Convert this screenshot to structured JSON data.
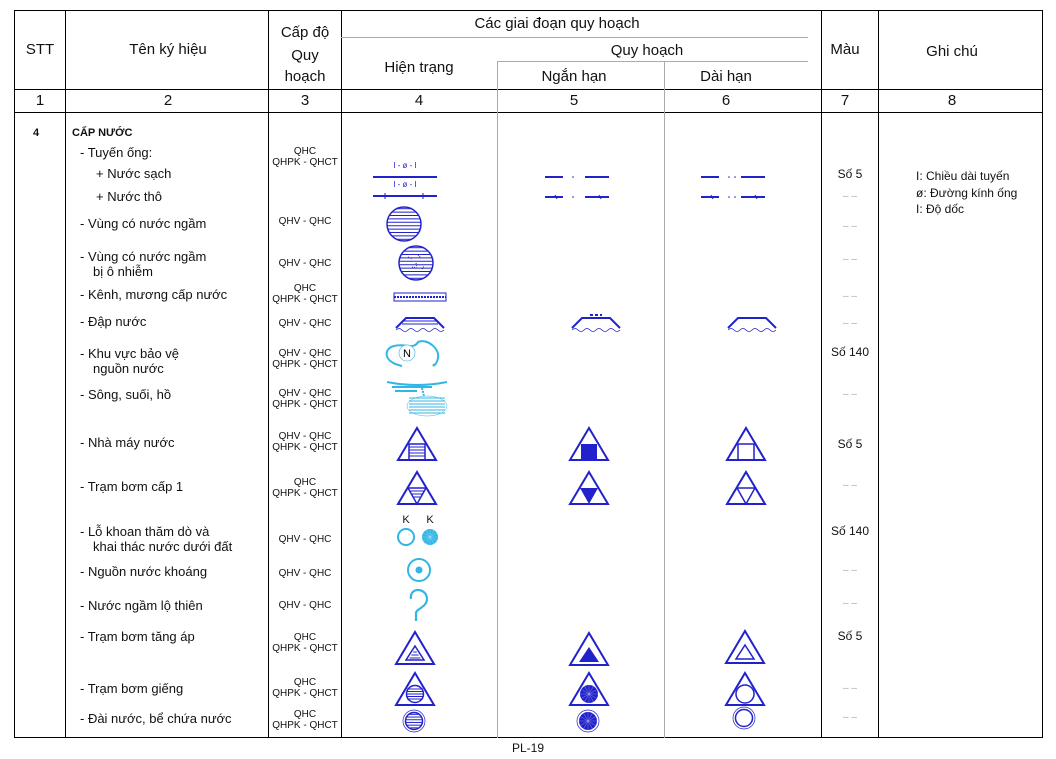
{
  "header": {
    "stt": "STT",
    "name": "Tên ký hiệu",
    "level": [
      "Cấp độ",
      "Quy",
      "hoạch"
    ],
    "stages": "Các giai đoạn quy hoạch",
    "current": "Hiện trạng",
    "planning": "Quy hoạch",
    "short_term": "Ngắn hạn",
    "long_term": "Dài hạn",
    "color": "Màu",
    "note": "Ghi chú"
  },
  "column_numbers": [
    "1",
    "2",
    "3",
    "4",
    "5",
    "6",
    "7",
    "8"
  ],
  "section": {
    "stt": "4",
    "title": "CẤP NƯỚC"
  },
  "rows": [
    {
      "name": [
        "- Tuyến ống:"
      ],
      "level": [
        "QHC",
        "QHPK - QHCT"
      ],
      "color": ""
    },
    {
      "name": [
        "+ Nước sạch"
      ],
      "level": [],
      "color": "Số 5"
    },
    {
      "name": [
        "+ Nước thô"
      ],
      "level": [],
      "color": "– –"
    },
    {
      "name": [
        "- Vùng có nước ngầm"
      ],
      "level": [
        "QHV - QHC"
      ],
      "color": "– –"
    },
    {
      "name": [
        "- Vùng có nước ngầm",
        "bị ô nhiễm"
      ],
      "level": [
        "QHV - QHC"
      ],
      "color": "– –"
    },
    {
      "name": [
        "- Kênh, mương cấp nước"
      ],
      "level": [
        "QHC",
        "QHPK - QHCT"
      ],
      "color": "– –"
    },
    {
      "name": [
        "- Đập nước"
      ],
      "level": [
        "QHV - QHC"
      ],
      "color": "– –"
    },
    {
      "name": [
        "- Khu vực bảo vệ",
        "nguồn nước"
      ],
      "level": [
        "QHV - QHC",
        "QHPK - QHCT"
      ],
      "color": "Số 140"
    },
    {
      "name": [
        "- Sông, suối, hồ"
      ],
      "level": [
        "QHV - QHC",
        "QHPK - QHCT"
      ],
      "color": "– –"
    },
    {
      "name": [
        "- Nhà máy nước"
      ],
      "level": [
        "QHV - QHC",
        "QHPK - QHCT"
      ],
      "color": "Số 5"
    },
    {
      "name": [
        "- Trạm bơm cấp 1"
      ],
      "level": [
        "QHC",
        "QHPK - QHCT"
      ],
      "color": "– –"
    },
    {
      "name": [
        "- Lỗ khoan thăm dò và",
        "khai thác nước dưới đất"
      ],
      "level": [
        "QHV - QHC"
      ],
      "color": "Số 140"
    },
    {
      "name": [
        "- Nguồn nước khoáng"
      ],
      "level": [
        "QHV - QHC"
      ],
      "color": "– –"
    },
    {
      "name": [
        "- Nước ngầm lộ thiên"
      ],
      "level": [
        "QHV - QHC"
      ],
      "color": "– –"
    },
    {
      "name": [
        "- Trạm bơm tăng áp"
      ],
      "level": [
        "QHC",
        "QHPK - QHCT"
      ],
      "color": "Số 5"
    },
    {
      "name": [
        "- Trạm bơm giếng"
      ],
      "level": [
        "QHC",
        "QHPK - QHCT"
      ],
      "color": "– –"
    },
    {
      "name": [
        "-  Đài nước, bể chứa nước"
      ],
      "level": [
        "QHC",
        "QHPK - QHCT"
      ],
      "color": "– –"
    }
  ],
  "notes": [
    "I: Chiều dài tuyến",
    "ø: Đường kính ống",
    "I: Độ dốc"
  ],
  "pipe_label": "I - ø - I",
  "well_label": "K",
  "protection_label": "N",
  "footer": "PL-19",
  "colors": {
    "blue": "#2222cc",
    "cyan": "#33b5e5",
    "border": "#000000",
    "grid": "#aaaaaa"
  }
}
